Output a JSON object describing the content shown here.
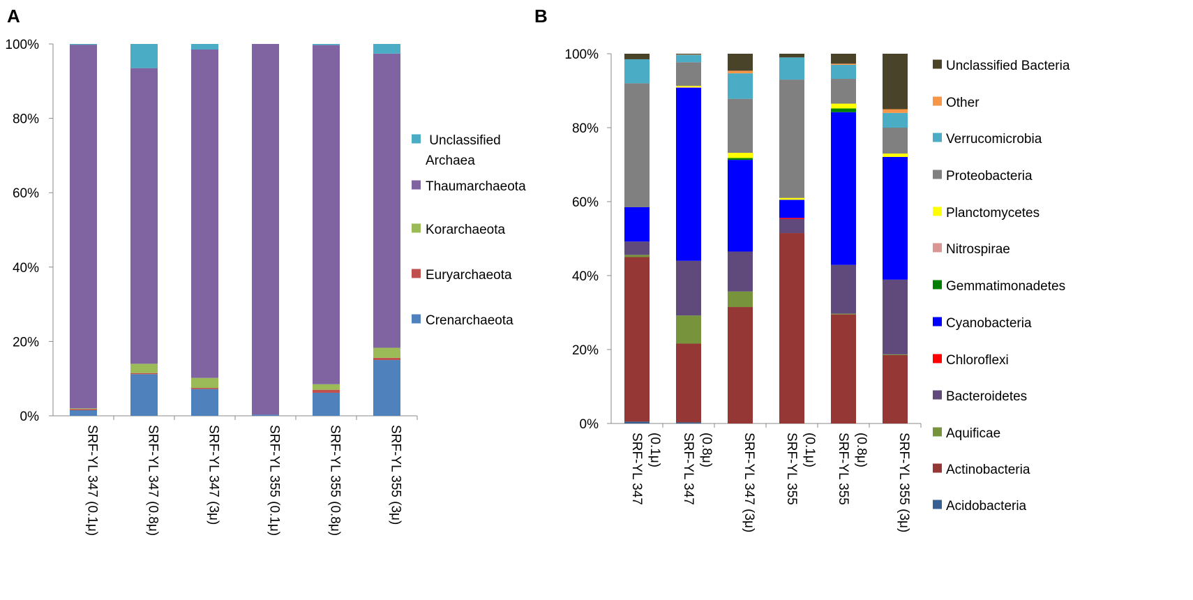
{
  "chart_data": [
    {
      "id": "A",
      "type": "bar",
      "stacked": true,
      "panel_label": "A",
      "title": "",
      "xlabel": "",
      "ylabel": "",
      "ylim": [
        0,
        100
      ],
      "y_ticks": [
        "0%",
        "20%",
        "40%",
        "60%",
        "80%",
        "100%"
      ],
      "categories": [
        [
          "SRF-YL 347 (0.1μ)"
        ],
        [
          "SRF-YL 347 (0.8μ)"
        ],
        [
          "SRF-YL 347 (3μ)"
        ],
        [
          "SRF-YL 355 (0.1μ)"
        ],
        [
          "SRF-YL 355 (0.8μ)"
        ],
        [
          "SRF-YL 355 (3μ)"
        ]
      ],
      "series": [
        {
          "name": "Crenarchaeota",
          "color": "#4f81bd",
          "values": [
            1.5,
            11.2,
            7.2,
            0.3,
            6.2,
            15.0
          ]
        },
        {
          "name": "Euryarchaeota",
          "color": "#c0504d",
          "values": [
            0.3,
            0.3,
            0.3,
            0.0,
            0.8,
            0.6
          ]
        },
        {
          "name": "Korarchaeota",
          "color": "#9bbb59",
          "values": [
            0.2,
            2.5,
            2.7,
            0.0,
            1.5,
            2.7
          ]
        },
        {
          "name": "Thaumarchaeota",
          "color": "#8064a2",
          "values": [
            97.8,
            79.5,
            88.3,
            99.7,
            91.2,
            79.1
          ]
        },
        {
          "name": "Unclassified Archaea",
          "color": "#4bacc6",
          "values": [
            0.2,
            6.5,
            1.5,
            0.0,
            0.3,
            2.6
          ]
        }
      ],
      "legend": [
        {
          "label_lines": [
            " Unclassified",
            "Archaea"
          ],
          "color": "#4bacc6"
        },
        {
          "label_lines": [
            "Thaumarchaeota"
          ],
          "color": "#8064a2"
        },
        {
          "label_lines": [
            "Korarchaeota"
          ],
          "color": "#9bbb59"
        },
        {
          "label_lines": [
            "Euryarchaeota"
          ],
          "color": "#c0504d"
        },
        {
          "label_lines": [
            "Crenarchaeota"
          ],
          "color": "#4f81bd"
        }
      ]
    },
    {
      "id": "B",
      "type": "bar",
      "stacked": true,
      "panel_label": "B",
      "title": "",
      "xlabel": "",
      "ylabel": "",
      "ylim": [
        0,
        100
      ],
      "y_ticks": [
        "0%",
        "20%",
        "40%",
        "60%",
        "80%",
        "100%"
      ],
      "categories": [
        [
          "SRF-YL 347",
          "(0.1μ)"
        ],
        [
          "SRF-YL 347",
          "(0.8μ)"
        ],
        [
          "SRF-YL 347 (3μ)"
        ],
        [
          "SRF-YL 355",
          "(0.1μ)"
        ],
        [
          "SRF-YL 355",
          "(0.8μ)"
        ],
        [
          "SRF-YL 355 (3μ)"
        ]
      ],
      "series": [
        {
          "name": "Acidobacteria",
          "color": "#376092",
          "values": [
            0.5,
            0.3,
            0.0,
            0.0,
            0.0,
            0.0
          ]
        },
        {
          "name": "Actinobacteria",
          "color": "#953735",
          "values": [
            44.5,
            21.3,
            31.5,
            51.5,
            29.5,
            18.5
          ]
        },
        {
          "name": "Aquificae",
          "color": "#77933c",
          "values": [
            0.6,
            7.6,
            4.2,
            0.0,
            0.2,
            0.2
          ]
        },
        {
          "name": "Bacteroidetes",
          "color": "#604a7b",
          "values": [
            3.6,
            14.8,
            10.8,
            3.8,
            13.2,
            20.2
          ]
        },
        {
          "name": "Chloroflexi",
          "color": "#ff0000",
          "values": [
            0.0,
            0.0,
            0.0,
            0.3,
            0.0,
            0.0
          ]
        },
        {
          "name": "Cyanobacteria",
          "color": "#0000ff",
          "values": [
            9.3,
            46.8,
            24.8,
            4.9,
            41.3,
            33.2
          ]
        },
        {
          "name": "Gemmatimonadetes",
          "color": "#008000",
          "values": [
            0.0,
            0.0,
            0.5,
            0.0,
            1.0,
            0.0
          ]
        },
        {
          "name": "Nitrospirae",
          "color": "#d99694",
          "values": [
            0.0,
            0.2,
            0.0,
            0.0,
            0.0,
            0.0
          ]
        },
        {
          "name": "Planctomycetes",
          "color": "#ffff00",
          "values": [
            0.0,
            0.3,
            1.4,
            0.5,
            1.3,
            0.9
          ]
        },
        {
          "name": "Proteobacteria",
          "color": "#808080",
          "values": [
            33.5,
            6.4,
            14.6,
            32.0,
            6.7,
            7.0
          ]
        },
        {
          "name": "Verrucomicrobia",
          "color": "#4bacc6",
          "values": [
            6.5,
            2.0,
            6.9,
            6.0,
            3.8,
            4.0
          ]
        },
        {
          "name": "Other",
          "color": "#f79646",
          "values": [
            0.0,
            0.1,
            0.7,
            0.0,
            0.3,
            1.0
          ]
        },
        {
          "name": "Unclassified Bacteria",
          "color": "#494429",
          "values": [
            1.5,
            0.2,
            4.6,
            1.0,
            2.7,
            15.0
          ]
        }
      ],
      "legend": [
        {
          "label_lines": [
            "Unclassified Bacteria"
          ],
          "color": "#494429"
        },
        {
          "label_lines": [
            "Other"
          ],
          "color": "#f79646"
        },
        {
          "label_lines": [
            "Verrucomicrobia"
          ],
          "color": "#4bacc6"
        },
        {
          "label_lines": [
            "Proteobacteria"
          ],
          "color": "#808080"
        },
        {
          "label_lines": [
            "Planctomycetes"
          ],
          "color": "#ffff00"
        },
        {
          "label_lines": [
            "Nitrospirae"
          ],
          "color": "#d99694"
        },
        {
          "label_lines": [
            "Gemmatimonadetes"
          ],
          "color": "#008000"
        },
        {
          "label_lines": [
            "Cyanobacteria"
          ],
          "color": "#0000ff"
        },
        {
          "label_lines": [
            "Chloroflexi"
          ],
          "color": "#ff0000"
        },
        {
          "label_lines": [
            "Bacteroidetes"
          ],
          "color": "#604a7b"
        },
        {
          "label_lines": [
            "Aquificae"
          ],
          "color": "#77933c"
        },
        {
          "label_lines": [
            "Actinobacteria"
          ],
          "color": "#953735"
        },
        {
          "label_lines": [
            "Acidobacteria"
          ],
          "color": "#376092"
        }
      ]
    }
  ]
}
